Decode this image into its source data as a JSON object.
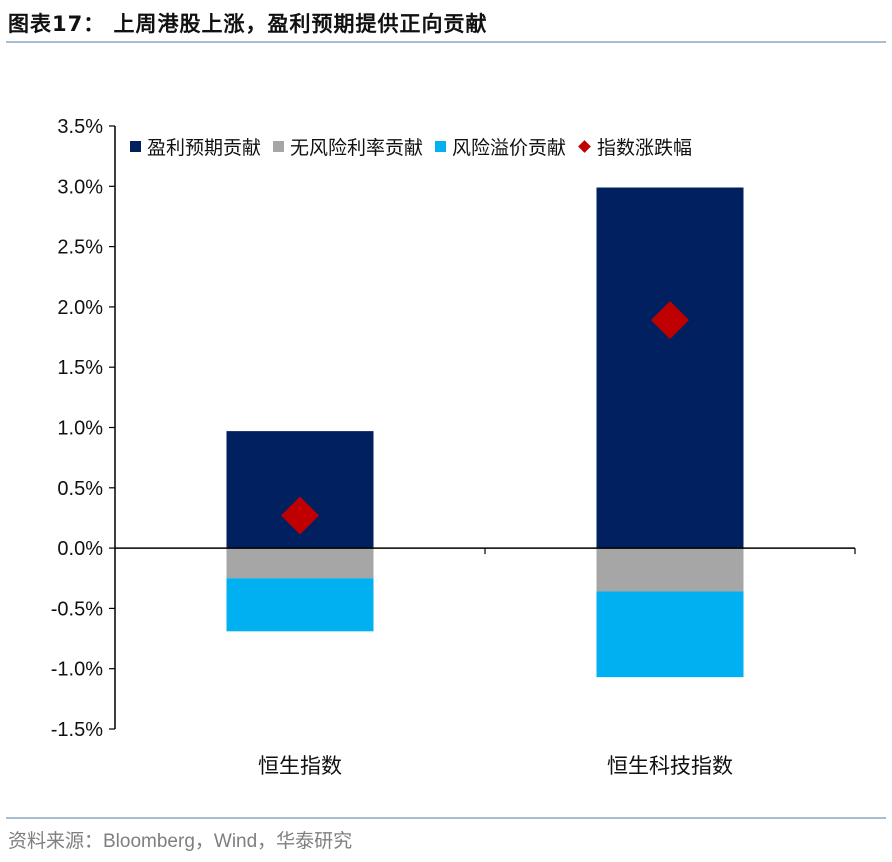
{
  "header": {
    "title": "图表17： 上周港股上涨，盈利预期提供正向贡献"
  },
  "footer": {
    "source": "资料来源：Bloomberg，Wind，华泰研究"
  },
  "colors": {
    "earnings": "#002060",
    "riskfree": "#a6a6a6",
    "premium": "#00b0f0",
    "index": "#c00000",
    "rule": "#a8bcd4"
  },
  "legend": {
    "items": [
      {
        "label": "盈利预期贡献",
        "shape": "square",
        "color": "#002060"
      },
      {
        "label": "无风险利率贡献",
        "shape": "square",
        "color": "#a6a6a6"
      },
      {
        "label": "风险溢价贡献",
        "shape": "square",
        "color": "#00b0f0"
      },
      {
        "label": "指数涨跌幅",
        "shape": "diamond",
        "color": "#c00000"
      }
    ]
  },
  "axis": {
    "y_ticks": [
      "3.5%",
      "3.0%",
      "2.5%",
      "2.0%",
      "1.5%",
      "1.0%",
      "0.5%",
      "0.0%",
      "-0.5%",
      "-1.0%",
      "-1.5%"
    ],
    "categories": [
      "恒生指数",
      "恒生科技指数"
    ]
  },
  "chart_data": {
    "type": "bar",
    "stacked": true,
    "title": "上周港股上涨，盈利预期提供正向贡献",
    "categories": [
      "恒生指数",
      "恒生科技指数"
    ],
    "series": [
      {
        "name": "盈利预期贡献",
        "type": "bar",
        "values": [
          0.97,
          2.99
        ]
      },
      {
        "name": "无风险利率贡献",
        "type": "bar",
        "values": [
          -0.25,
          -0.36
        ]
      },
      {
        "name": "风险溢价贡献",
        "type": "bar",
        "values": [
          -0.44,
          -0.71
        ]
      },
      {
        "name": "指数涨跌幅",
        "type": "scatter",
        "marker": "diamond",
        "values": [
          0.27,
          1.89
        ]
      }
    ],
    "xlabel": "",
    "ylabel": "",
    "ylim": [
      -1.5,
      3.5
    ],
    "y_unit": "%",
    "y_tick_step": 0.5,
    "grid": false,
    "legend_position": "top"
  }
}
